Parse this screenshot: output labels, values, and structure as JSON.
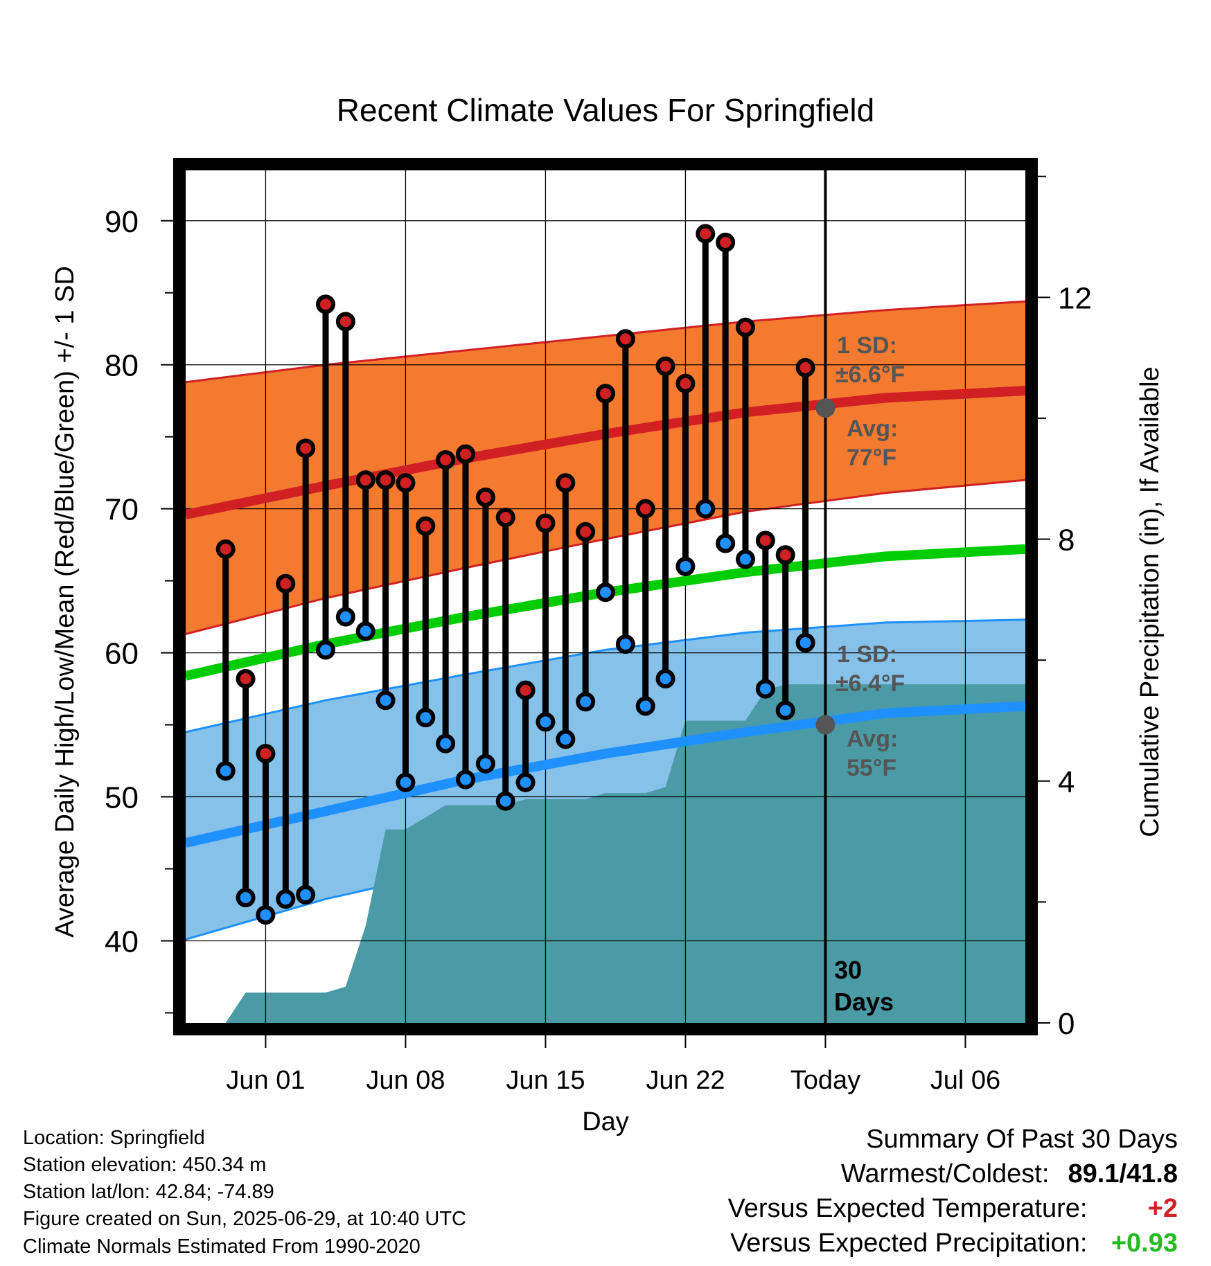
{
  "chart_data": {
    "type": "line",
    "title": "Recent Climate Values For Springfield",
    "xlabel": "Day",
    "ylabel_left": "Average Daily High/Low/Mean (Red/Blue/Green) +/- 1 SD",
    "ylabel_right": "Cumulative Precipitation (in), If Available",
    "y_left_range": [
      34.3,
      93.5
    ],
    "y_left_ticks": [
      40,
      50,
      60,
      70,
      80,
      90
    ],
    "y_left_tick_labels": [
      "40",
      "50",
      "60",
      "70",
      "80",
      "90"
    ],
    "y_right_range": [
      0,
      14.1
    ],
    "y_right_ticks": [
      0,
      4,
      8,
      12
    ],
    "y_right_tick_labels": [
      "0",
      "4",
      "8",
      "12"
    ],
    "x_range": [
      "2025-05-28",
      "2025-07-09"
    ],
    "x_ticks": [
      "2025-06-01",
      "2025-06-08",
      "2025-06-15",
      "2025-06-22",
      "2025-06-29",
      "2025-07-06"
    ],
    "x_tick_labels": [
      "Jun 01",
      "Jun 08",
      "Jun 15",
      "Jun 22",
      "Today",
      "Jul 06"
    ],
    "grid": true,
    "today": "2025-06-29",
    "today_label": "30\nDays",
    "normals": {
      "dates": [
        "2025-05-28",
        "2025-06-04",
        "2025-06-11",
        "2025-06-18",
        "2025-06-25",
        "2025-07-02",
        "2025-07-09"
      ],
      "high_avg": [
        69.6,
        71.6,
        73.5,
        75.2,
        76.7,
        77.7,
        78.2
      ],
      "high_upper": [
        78.8,
        80.0,
        81.0,
        82.0,
        83.0,
        83.8,
        84.4
      ],
      "high_lower": [
        61.3,
        63.8,
        65.9,
        67.9,
        69.8,
        71.1,
        72.0
      ],
      "mean_avg": [
        58.4,
        60.6,
        62.5,
        64.2,
        65.6,
        66.7,
        67.2
      ],
      "low_avg": [
        46.8,
        49.0,
        51.2,
        53.0,
        54.5,
        55.8,
        56.3
      ],
      "low_upper": [
        54.5,
        56.7,
        58.5,
        60.2,
        61.4,
        62.1,
        62.3
      ],
      "low_lower": [
        40.1,
        42.9,
        45.1,
        47.2,
        48.9,
        49.9,
        50.5
      ]
    },
    "series": [
      {
        "name": "High",
        "color": "#d12023",
        "x": [
          "2025-05-30",
          "2025-05-31",
          "2025-06-01",
          "2025-06-02",
          "2025-06-03",
          "2025-06-04",
          "2025-06-05",
          "2025-06-06",
          "2025-06-07",
          "2025-06-08",
          "2025-06-09",
          "2025-06-10",
          "2025-06-11",
          "2025-06-12",
          "2025-06-13",
          "2025-06-14",
          "2025-06-15",
          "2025-06-16",
          "2025-06-17",
          "2025-06-18",
          "2025-06-19",
          "2025-06-20",
          "2025-06-21",
          "2025-06-22",
          "2025-06-23",
          "2025-06-24",
          "2025-06-25",
          "2025-06-26",
          "2025-06-27",
          "2025-06-28"
        ],
        "values": [
          67.2,
          58.2,
          53.0,
          64.8,
          74.2,
          84.2,
          83.0,
          72.0,
          72.0,
          71.8,
          68.8,
          73.4,
          73.8,
          70.8,
          69.4,
          57.4,
          69.0,
          71.8,
          68.4,
          78.0,
          81.8,
          70.0,
          79.9,
          78.7,
          89.1,
          88.5,
          82.6,
          67.8,
          66.8,
          79.8
        ]
      },
      {
        "name": "Low",
        "color": "#1e90ff",
        "x": [
          "2025-05-30",
          "2025-05-31",
          "2025-06-01",
          "2025-06-02",
          "2025-06-03",
          "2025-06-04",
          "2025-06-05",
          "2025-06-06",
          "2025-06-07",
          "2025-06-08",
          "2025-06-09",
          "2025-06-10",
          "2025-06-11",
          "2025-06-12",
          "2025-06-13",
          "2025-06-14",
          "2025-06-15",
          "2025-06-16",
          "2025-06-17",
          "2025-06-18",
          "2025-06-19",
          "2025-06-20",
          "2025-06-21",
          "2025-06-22",
          "2025-06-23",
          "2025-06-24",
          "2025-06-25",
          "2025-06-26",
          "2025-06-27",
          "2025-06-28"
        ],
        "values": [
          51.8,
          43.0,
          41.8,
          42.9,
          43.2,
          60.2,
          62.5,
          61.5,
          56.7,
          51.0,
          55.5,
          53.7,
          51.2,
          52.3,
          49.7,
          51.0,
          55.2,
          54.0,
          56.6,
          64.2,
          60.6,
          56.3,
          58.2,
          66.0,
          70.0,
          67.6,
          66.5,
          57.5,
          56.0,
          60.7
        ]
      }
    ],
    "precipitation": {
      "dates": [
        "2025-05-28",
        "2025-05-29",
        "2025-05-30",
        "2025-05-31",
        "2025-06-01",
        "2025-06-02",
        "2025-06-03",
        "2025-06-04",
        "2025-06-05",
        "2025-06-06",
        "2025-06-07",
        "2025-06-08",
        "2025-06-09",
        "2025-06-10",
        "2025-06-11",
        "2025-06-12",
        "2025-06-13",
        "2025-06-14",
        "2025-06-15",
        "2025-06-16",
        "2025-06-17",
        "2025-06-18",
        "2025-06-19",
        "2025-06-20",
        "2025-06-21",
        "2025-06-22",
        "2025-06-23",
        "2025-06-24",
        "2025-06-25",
        "2025-06-26",
        "2025-06-27",
        "2025-06-28",
        "2025-06-29",
        "2025-07-09"
      ],
      "values": [
        0,
        0,
        0,
        0.5,
        0.5,
        0.5,
        0.5,
        0.5,
        0.6,
        1.6,
        3.2,
        3.2,
        3.4,
        3.6,
        3.6,
        3.6,
        3.6,
        3.7,
        3.7,
        3.7,
        3.7,
        3.8,
        3.8,
        3.8,
        3.9,
        5.0,
        5.0,
        5.0,
        5.0,
        5.5,
        5.6,
        5.6,
        5.6,
        5.6
      ],
      "color": "#4a9ba5"
    },
    "annotations": {
      "high_sd": "1 SD:",
      "high_sd_val": "±6.6°F",
      "high_avg_label": "Avg:",
      "high_avg_val": "77°F",
      "low_sd": "1 SD:",
      "low_sd_val": "±6.4°F",
      "low_avg_label": "Avg:",
      "low_avg_val": "55°F",
      "today_high_avg": 77,
      "today_low_avg": 55
    },
    "colors": {
      "high_band": "#f47a30",
      "high_line": "#d12023",
      "mean_line": "#00cc00",
      "low_band": "#85c1e8",
      "low_line": "#1e90ff",
      "annotation": "#555555"
    }
  },
  "footer": {
    "location": "Location: Springfield",
    "elevation": "Station elevation: 450.34 m",
    "latlon": "Station lat/lon: 42.84; -74.89",
    "created": "Figure created on Sun, 2025-06-29, at 10:40 UTC",
    "normals": "Climate Normals Estimated From 1990-2020"
  },
  "summary": {
    "title": "Summary Of Past 30 Days",
    "warm_cold_label": "Warmest/Coldest:",
    "warm_cold_value": "89.1/41.8",
    "temp_label": "Versus Expected Temperature:",
    "temp_value": "+2",
    "temp_color": "#d12023",
    "precip_label": "Versus Expected Precipitation:",
    "precip_value": "+0.93",
    "precip_color": "#22bb22"
  }
}
